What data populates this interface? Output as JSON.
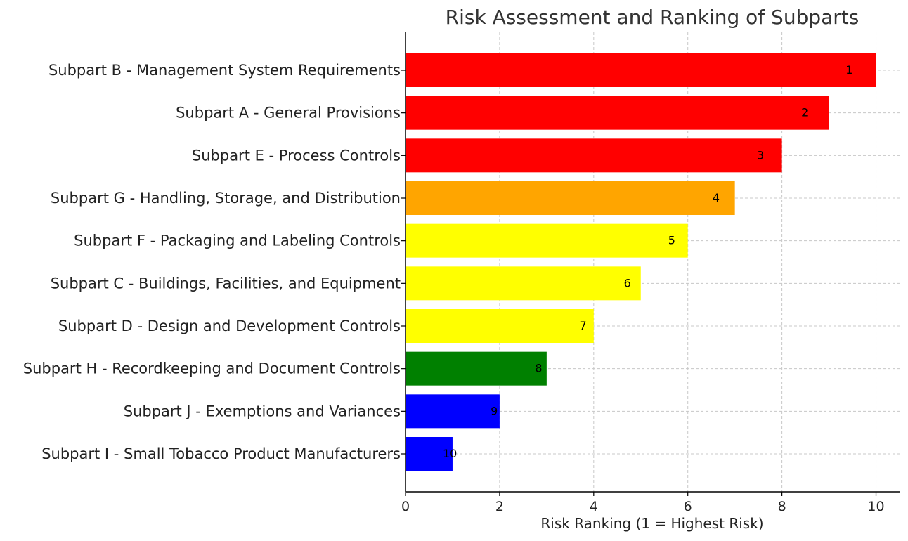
{
  "chart_data": {
    "type": "bar",
    "orientation": "horizontal",
    "title": "Risk Assessment and Ranking of Subparts",
    "xlabel": "Risk Ranking (1 = Highest Risk)",
    "ylabel": "",
    "xlim": [
      0,
      10.5
    ],
    "xticks": [
      "0",
      "2",
      "4",
      "6",
      "8",
      "10"
    ],
    "grid": true,
    "categories": [
      "Subpart B - Management System Requirements",
      "Subpart A - General Provisions",
      "Subpart E - Process Controls",
      "Subpart G - Handling, Storage, and Distribution",
      "Subpart F - Packaging and Labeling Controls",
      "Subpart C - Buildings, Facilities, and Equipment",
      "Subpart D - Design and Development Controls",
      "Subpart H - Recordkeeping and Document Controls",
      "Subpart J - Exemptions and Variances",
      "Subpart I - Small Tobacco Product Manufacturers"
    ],
    "values": [
      10,
      9,
      8,
      7,
      6,
      5,
      4,
      3,
      2,
      1
    ],
    "rank_labels": [
      "1",
      "2",
      "3",
      "4",
      "5",
      "6",
      "7",
      "8",
      "9",
      "10"
    ],
    "colors": [
      "#ff0000",
      "#ff0000",
      "#ff0000",
      "#ffa500",
      "#ffff00",
      "#ffff00",
      "#ffff00",
      "#008000",
      "#0000ff",
      "#0000ff"
    ]
  }
}
